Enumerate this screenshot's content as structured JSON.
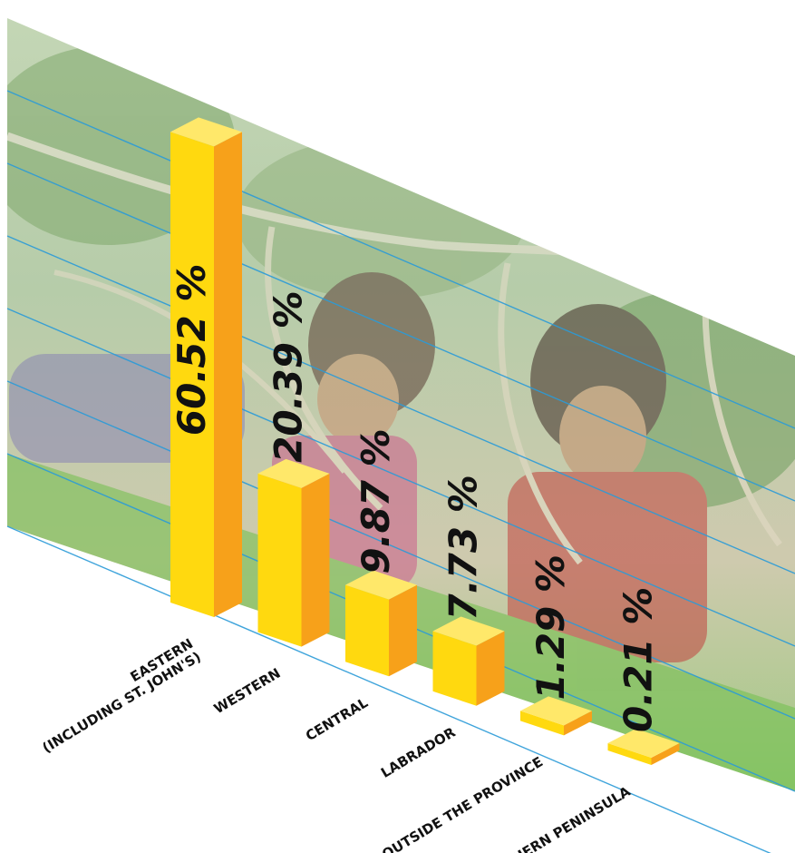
{
  "chart_data": {
    "type": "bar",
    "categories": [
      [
        "EASTERN",
        "(INCLUDING ST. JOHN'S)"
      ],
      [
        "WESTERN"
      ],
      [
        "CENTRAL"
      ],
      [
        "LABRADOR"
      ],
      [
        "OUTSIDE THE PROVINCE"
      ],
      [
        "NORTHERN PENINSULA"
      ]
    ],
    "values": [
      60.52,
      20.39,
      9.87,
      7.73,
      1.29,
      0.21
    ],
    "value_labels": [
      "60.52 %",
      "20.39 %",
      "9.87 %",
      "7.73 %",
      "1.29 %",
      "0.21 %"
    ],
    "ylim": [
      0,
      70
    ],
    "grid": true,
    "three_d": true,
    "title": "",
    "xlabel": "",
    "ylabel": "",
    "background": "photo of two children climbing a rope net",
    "colors": {
      "bar_front": "#FFD90F",
      "bar_side": "#F7A11A",
      "bar_top": "#FFE86A",
      "grid_line": "#2B9BD8",
      "foliage": "#8FB07A",
      "grass": "#77BF52"
    }
  }
}
